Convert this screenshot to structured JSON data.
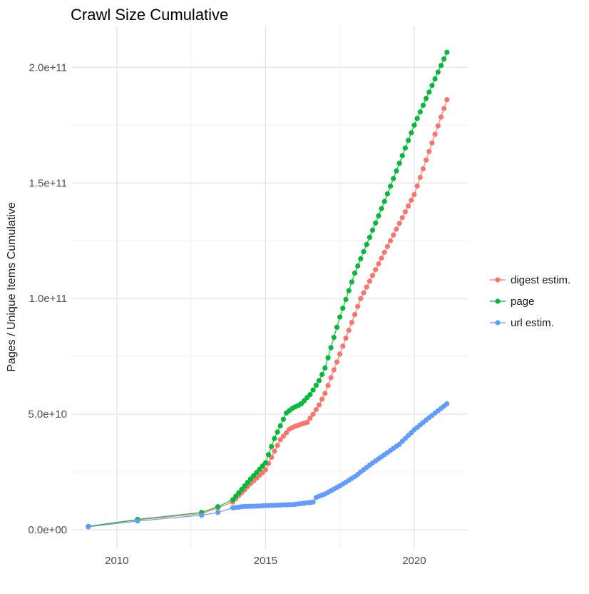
{
  "chart_data": {
    "type": "scatter",
    "title": "Crawl Size Cumulative",
    "xlabel": "",
    "ylabel": "Pages / Unique Items Cumulative",
    "values_unit": "1e9 (billions); e.g. 206.5 = 2.065e+11",
    "xlim": [
      2008.47,
      2021.8
    ],
    "ylim_e9": [
      -8.3,
      218
    ],
    "legend_position": "right-center",
    "grid": "on (major + minor, light gray on white)",
    "x_ticks": [
      {
        "value": 2010,
        "label": "2010"
      },
      {
        "value": 2015,
        "label": "2015"
      },
      {
        "value": 2020,
        "label": "2020"
      }
    ],
    "y_ticks": [
      {
        "value_e9": 0,
        "label": "0.0e+00"
      },
      {
        "value_e9": 50,
        "label": "5.0e+10"
      },
      {
        "value_e9": 100,
        "label": "1.0e+11"
      },
      {
        "value_e9": 150,
        "label": "1.5e+11"
      },
      {
        "value_e9": 200,
        "label": "2.0e+11"
      }
    ],
    "x_minor_gridlines": [
      2012.5,
      2017.5
    ],
    "y_minor_gridlines_e9": [
      25,
      75,
      125,
      175
    ],
    "x": [
      2009.04,
      2010.7,
      2012.85,
      2013.4,
      2013.9,
      2014.0,
      2014.1,
      2014.2,
      2014.3,
      2014.4,
      2014.5,
      2014.6,
      2014.7,
      2014.8,
      2014.9,
      2015.0,
      2015.1,
      2015.2,
      2015.3,
      2015.4,
      2015.5,
      2015.6,
      2015.7,
      2015.8,
      2015.9,
      2016.0,
      2016.1,
      2016.2,
      2016.3,
      2016.4,
      2016.5,
      2016.6,
      2016.7,
      2016.8,
      2016.9,
      2017.0,
      2017.1,
      2017.2,
      2017.3,
      2017.4,
      2017.5,
      2017.6,
      2017.7,
      2017.8,
      2017.9,
      2018.0,
      2018.1,
      2018.2,
      2018.3,
      2018.4,
      2018.5,
      2018.6,
      2018.7,
      2018.8,
      2018.9,
      2019.0,
      2019.1,
      2019.2,
      2019.3,
      2019.4,
      2019.5,
      2019.6,
      2019.7,
      2019.8,
      2019.9,
      2020.0,
      2020.1,
      2020.2,
      2020.3,
      2020.4,
      2020.5,
      2020.6,
      2020.7,
      2020.8,
      2020.9,
      2021.0,
      2021.1
    ],
    "series": [
      {
        "name": "digest estim.",
        "color": "#F8766D",
        "values_e9": [
          1.5,
          4.3,
          7.0,
          9.5,
          12.0,
          13.5,
          14.8,
          16.1,
          17.4,
          18.7,
          20.0,
          21.2,
          22.4,
          23.6,
          24.8,
          26.0,
          28.7,
          31.3,
          34.0,
          36.5,
          39.0,
          40.5,
          42.0,
          43.5,
          44.2,
          44.8,
          45.2,
          45.7,
          46.1,
          46.5,
          48.3,
          50.0,
          52.0,
          54.0,
          56.5,
          59.0,
          62.4,
          65.8,
          69.2,
          72.6,
          76.0,
          79.4,
          82.9,
          86.3,
          89.7,
          93.1,
          96.6,
          100.0,
          102.5,
          105.0,
          107.5,
          110.0,
          112.5,
          115.0,
          117.5,
          120.0,
          122.5,
          125.0,
          127.5,
          130.0,
          132.5,
          135.0,
          137.5,
          140.0,
          142.5,
          145.0,
          148.7,
          152.4,
          156.1,
          159.9,
          163.6,
          167.3,
          171.0,
          174.7,
          178.5,
          182.2,
          186.0
        ]
      },
      {
        "name": "page",
        "color": "#00BA38",
        "values_e9": [
          1.5,
          4.5,
          7.5,
          10.0,
          13.0,
          14.5,
          16.0,
          17.5,
          19.0,
          20.5,
          22.0,
          23.4,
          24.8,
          26.2,
          27.6,
          29.0,
          32.5,
          36.0,
          39.5,
          42.3,
          45.0,
          47.8,
          50.5,
          51.5,
          52.5,
          53.2,
          53.8,
          54.5,
          55.8,
          57.2,
          58.5,
          60.5,
          62.5,
          64.5,
          67.2,
          70.0,
          74.4,
          78.8,
          83.2,
          87.6,
          92.0,
          95.8,
          99.6,
          103.4,
          107.2,
          111.0,
          114.1,
          117.2,
          120.3,
          123.4,
          126.5,
          129.6,
          132.7,
          135.8,
          138.9,
          142.0,
          145.3,
          148.6,
          151.9,
          155.2,
          158.5,
          161.8,
          165.1,
          168.4,
          171.7,
          175.0,
          177.9,
          180.7,
          183.6,
          186.5,
          189.3,
          192.2,
          195.0,
          197.9,
          200.8,
          203.6,
          206.5
        ]
      },
      {
        "name": "url estim.",
        "color": "#619CFF",
        "values_e9": [
          1.3,
          3.8,
          6.3,
          7.5,
          9.5,
          9.7,
          9.8,
          10.0,
          10.1,
          10.1,
          10.2,
          10.2,
          10.3,
          10.3,
          10.4,
          10.5,
          10.5,
          10.6,
          10.6,
          10.7,
          10.7,
          10.8,
          10.8,
          10.9,
          10.9,
          11.0,
          11.2,
          11.3,
          11.5,
          11.7,
          11.8,
          12.0,
          14.0,
          14.5,
          15.0,
          15.5,
          16.2,
          16.9,
          17.6,
          18.3,
          19.0,
          19.8,
          20.6,
          21.4,
          22.2,
          23.0,
          24.0,
          25.0,
          26.0,
          27.0,
          28.0,
          28.9,
          29.8,
          30.7,
          31.6,
          32.5,
          33.4,
          34.3,
          35.2,
          36.1,
          37.0,
          38.3,
          39.5,
          40.8,
          42.0,
          43.3,
          44.3,
          45.4,
          46.4,
          47.5,
          48.5,
          49.5,
          50.5,
          51.5,
          52.5,
          53.5,
          54.5
        ]
      }
    ]
  },
  "style": {
    "major_grid_color": "#E3E3E3",
    "minor_grid_color": "#F0F0F0",
    "background": "#FFFFFF"
  }
}
